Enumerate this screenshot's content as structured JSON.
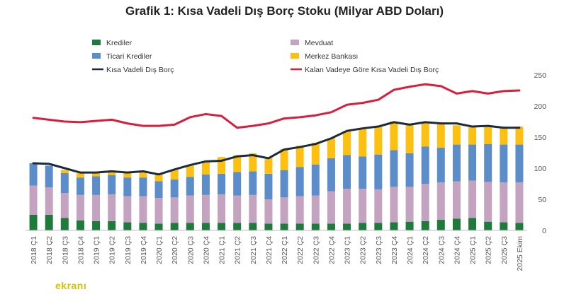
{
  "title": "Grafik 1: Kısa Vadeli Dış Borç Stoku (Milyar ABD Doları)",
  "watermark": "ekranı",
  "chart_data": {
    "type": "bar",
    "stacked": true,
    "categories": [
      "2018 Ç1",
      "2018 Ç2",
      "2018 Ç3",
      "2018 Ç4",
      "2019 Ç1",
      "2019 Ç2",
      "2019 Ç3",
      "2019 Ç4",
      "2020 Ç1",
      "2020 Ç2",
      "2020 Ç3",
      "2020 Ç4",
      "2021 Ç1",
      "2021 Ç2",
      "2021 Ç3",
      "2021 Ç4",
      "2022 Ç1",
      "2022 Ç2",
      "2022 Ç3",
      "2022 Ç4",
      "2023 Ç1",
      "2023 Ç2",
      "2023 Ç3",
      "2023 Ç4",
      "2024 Ç1",
      "2024 Ç2",
      "2024 Ç3",
      "2024 Ç4",
      "2025 Ç1",
      "2025 Ç2",
      "2025 Ç3",
      "2025 Ekim"
    ],
    "series": [
      {
        "name": "Krediler",
        "kind": "bar",
        "color": "#1e7b3c",
        "values": [
          25,
          25,
          20,
          16,
          15,
          15,
          13,
          12,
          11,
          12,
          12,
          12,
          12,
          12,
          12,
          11,
          11,
          11,
          11,
          11,
          11,
          12,
          12,
          13,
          14,
          15,
          17,
          19,
          20,
          14,
          13,
          12
        ]
      },
      {
        "name": "Mevduat",
        "kind": "bar",
        "color": "#c4a3c1",
        "values": [
          47,
          44,
          40,
          41,
          42,
          43,
          42,
          43,
          41,
          41,
          44,
          45,
          46,
          44,
          45,
          39,
          42,
          44,
          45,
          52,
          56,
          55,
          54,
          57,
          56,
          60,
          60,
          60,
          60,
          64,
          64,
          65
        ]
      },
      {
        "name": "Ticari Krediler",
        "kind": "bar",
        "color": "#5b8dcb",
        "values": [
          36,
          35,
          32,
          28,
          30,
          31,
          30,
          30,
          27,
          29,
          30,
          33,
          33,
          38,
          38,
          41,
          44,
          47,
          50,
          53,
          54,
          52,
          56,
          59,
          54,
          60,
          56,
          59,
          58,
          61,
          61,
          61
        ]
      },
      {
        "name": "Merkez Bankası",
        "kind": "bar",
        "color": "#fdc010",
        "values": [
          0,
          0,
          5,
          7,
          7,
          7,
          10,
          10,
          12,
          15,
          18,
          21,
          27,
          27,
          29,
          26,
          34,
          34,
          35,
          32,
          39,
          46,
          45,
          46,
          47,
          39,
          40,
          31,
          29,
          29,
          27,
          29
        ]
      },
      {
        "name": "Kısa Vadeli Dış Borç",
        "kind": "line",
        "color": "#1c2b3a",
        "values": [
          108,
          107,
          100,
          93,
          93,
          95,
          93,
          95,
          90,
          98,
          105,
          111,
          112,
          119,
          121,
          116,
          130,
          134,
          139,
          148,
          160,
          164,
          167,
          174,
          170,
          174,
          172,
          172,
          167,
          168,
          165,
          165
        ]
      },
      {
        "name": "Kalan Vadeye Göre Kısa Vadeli Dış Borç",
        "kind": "line",
        "color": "#d81e3c",
        "values": [
          181,
          178,
          175,
          174,
          176,
          178,
          172,
          168,
          168,
          170,
          182,
          187,
          184,
          165,
          168,
          172,
          180,
          182,
          185,
          190,
          202,
          205,
          210,
          226,
          231,
          235,
          232,
          220,
          224,
          220,
          224,
          225
        ]
      }
    ],
    "legend": [
      {
        "name": "Krediler",
        "color": "#1e7b3c",
        "shape": "rect"
      },
      {
        "name": "Mevduat",
        "color": "#c4a3c1",
        "shape": "rect"
      },
      {
        "name": "Ticari Krediler",
        "color": "#5b8dcb",
        "shape": "rect"
      },
      {
        "name": "Merkez Bankası",
        "color": "#fdc010",
        "shape": "rect"
      },
      {
        "name": "Kısa Vadeli Dış Borç",
        "color": "#1c2b3a",
        "shape": "line"
      },
      {
        "name": "Kalan Vadeye Göre Kısa Vadeli Dış Borç",
        "color": "#d81e3c",
        "shape": "line"
      }
    ],
    "legend_position": "top",
    "y_axis": {
      "side": "right",
      "ylim": [
        0,
        250
      ],
      "ticks": [
        0,
        50,
        100,
        150,
        200,
        250
      ]
    },
    "grid": false
  }
}
